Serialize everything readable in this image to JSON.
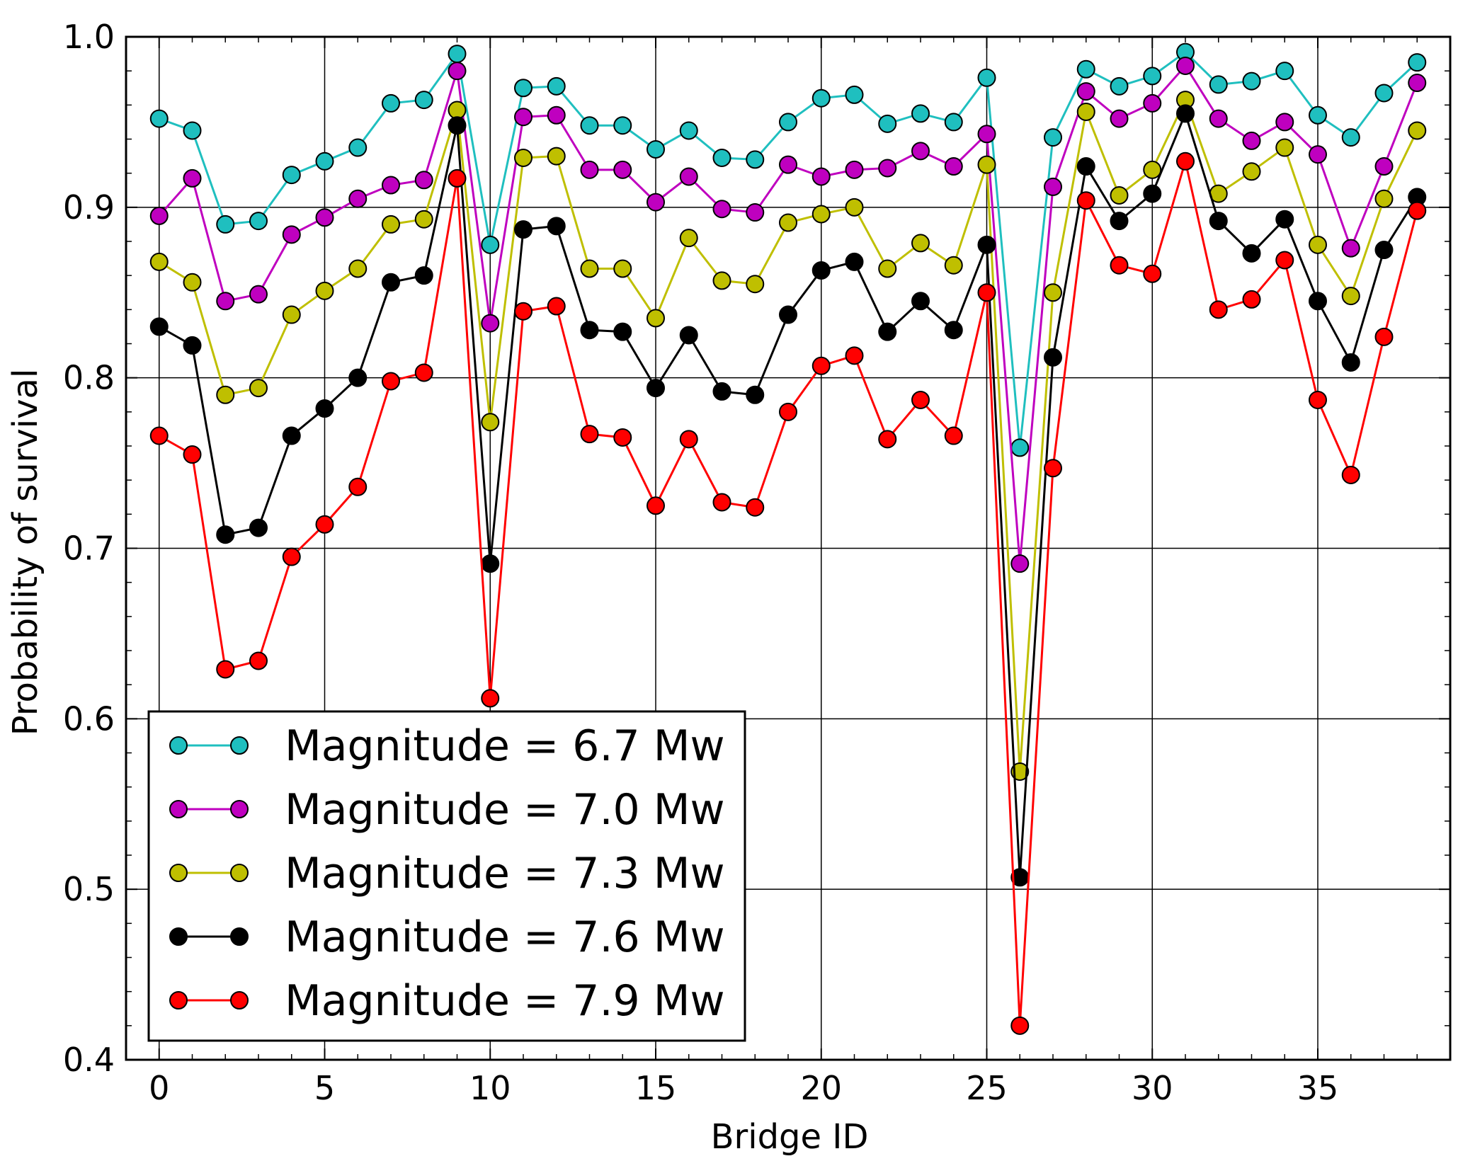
{
  "chart_data": {
    "type": "line",
    "title": "",
    "xlabel": "Bridge ID",
    "ylabel": "Probability of survival",
    "xlim": [
      -1,
      39
    ],
    "ylim": [
      0.4,
      1.0
    ],
    "grid": true,
    "legend_position": "bottom-left",
    "x_ticks": [
      0,
      5,
      10,
      15,
      20,
      25,
      30,
      35
    ],
    "x_tick_labels": [
      "0",
      "5",
      "10",
      "15",
      "20",
      "25",
      "30",
      "35"
    ],
    "y_ticks": [
      0.4,
      0.5,
      0.6,
      0.7,
      0.8,
      0.9,
      1.0
    ],
    "y_tick_labels": [
      "0.4",
      "0.5",
      "0.6",
      "0.7",
      "0.8",
      "0.9",
      "1.0"
    ],
    "x": [
      0,
      1,
      2,
      3,
      4,
      5,
      6,
      7,
      8,
      9,
      10,
      11,
      12,
      13,
      14,
      15,
      16,
      17,
      18,
      19,
      20,
      21,
      22,
      23,
      24,
      25,
      26,
      27,
      28,
      29,
      30,
      31,
      32,
      33,
      34,
      35,
      36,
      37,
      38
    ],
    "series": [
      {
        "name": "Magnitude = 6.7 Mw",
        "color": "#1fbfbf",
        "values": [
          0.952,
          0.945,
          0.89,
          0.892,
          0.919,
          0.927,
          0.935,
          0.961,
          0.963,
          0.99,
          0.878,
          0.97,
          0.971,
          0.948,
          0.948,
          0.934,
          0.945,
          0.929,
          0.928,
          0.95,
          0.964,
          0.966,
          0.949,
          0.955,
          0.95,
          0.976,
          0.759,
          0.941,
          0.981,
          0.971,
          0.977,
          0.991,
          0.972,
          0.974,
          0.98,
          0.954,
          0.941,
          0.967,
          0.985
        ]
      },
      {
        "name": "Magnitude = 7.0 Mw",
        "color": "#bf00bf",
        "values": [
          0.895,
          0.917,
          0.845,
          0.849,
          0.884,
          0.894,
          0.905,
          0.913,
          0.916,
          0.98,
          0.832,
          0.953,
          0.954,
          0.922,
          0.922,
          0.903,
          0.918,
          0.899,
          0.897,
          0.925,
          0.918,
          0.922,
          0.923,
          0.933,
          0.924,
          0.943,
          0.691,
          0.912,
          0.968,
          0.952,
          0.961,
          0.983,
          0.952,
          0.939,
          0.95,
          0.931,
          0.876,
          0.924,
          0.973
        ]
      },
      {
        "name": "Magnitude = 7.3 Mw",
        "color": "#bfbf00",
        "values": [
          0.868,
          0.856,
          0.79,
          0.794,
          0.837,
          0.851,
          0.864,
          0.89,
          0.893,
          0.957,
          0.774,
          0.929,
          0.93,
          0.864,
          0.864,
          0.835,
          0.882,
          0.857,
          0.855,
          0.891,
          0.896,
          0.9,
          0.864,
          0.879,
          0.866,
          0.925,
          0.569,
          0.85,
          0.956,
          0.907,
          0.922,
          0.963,
          0.908,
          0.921,
          0.935,
          0.878,
          0.848,
          0.905,
          0.945
        ]
      },
      {
        "name": "Magnitude = 7.6 Mw",
        "color": "#000000",
        "values": [
          0.83,
          0.819,
          0.708,
          0.712,
          0.766,
          0.782,
          0.8,
          0.856,
          0.86,
          0.948,
          0.691,
          0.887,
          0.889,
          0.828,
          0.827,
          0.794,
          0.825,
          0.792,
          0.79,
          0.837,
          0.863,
          0.868,
          0.827,
          0.845,
          0.828,
          0.878,
          0.507,
          0.812,
          0.924,
          0.892,
          0.908,
          0.955,
          0.892,
          0.873,
          0.893,
          0.845,
          0.809,
          0.875,
          0.906
        ]
      },
      {
        "name": "Magnitude = 7.9 Mw",
        "color": "#ff0000",
        "values": [
          0.766,
          0.755,
          0.629,
          0.634,
          0.695,
          0.714,
          0.736,
          0.798,
          0.803,
          0.917,
          0.612,
          0.839,
          0.842,
          0.767,
          0.765,
          0.725,
          0.764,
          0.727,
          0.724,
          0.78,
          0.807,
          0.813,
          0.764,
          0.787,
          0.766,
          0.85,
          0.42,
          0.747,
          0.904,
          0.866,
          0.861,
          0.927,
          0.84,
          0.846,
          0.869,
          0.787,
          0.743,
          0.824,
          0.898
        ]
      }
    ]
  }
}
